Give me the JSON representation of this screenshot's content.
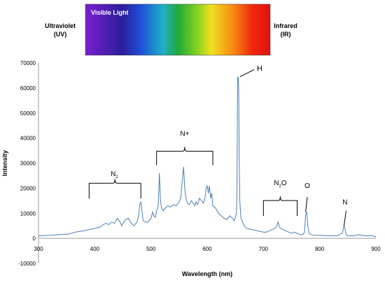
{
  "spectrum_bar": {
    "uv_label_line1": "Ultraviolet",
    "uv_label_line2": "(UV)",
    "visible_label": "Visible Light",
    "ir_label_line1": "Infrared",
    "ir_label_line2": "(IR)"
  },
  "chart_data": {
    "type": "line",
    "title": "",
    "xlabel": "Wavelength (nm)",
    "ylabel": "Intensity",
    "xlim": [
      300,
      900
    ],
    "ylim": [
      -10000,
      70000
    ],
    "x_ticks": [
      300,
      400,
      500,
      600,
      700,
      800,
      900
    ],
    "y_ticks": [
      -10000,
      0,
      10000,
      20000,
      30000,
      40000,
      50000,
      60000,
      70000
    ],
    "grid": false,
    "line_color": "#4a7fb5",
    "series": [
      {
        "x": [
          300,
          320,
          340,
          355,
          365,
          380,
          390,
          400,
          410,
          415,
          420,
          425,
          430,
          435,
          440,
          445,
          448,
          450,
          455,
          460,
          465,
          470,
          475,
          478,
          480,
          482,
          484,
          486,
          490,
          495,
          500,
          503,
          505,
          508,
          510,
          513,
          515,
          517,
          519,
          522,
          525,
          530,
          535,
          540,
          545,
          550,
          553,
          556,
          558,
          560,
          562,
          565,
          568,
          572,
          575,
          578,
          580,
          583,
          586,
          590,
          593,
          596,
          598,
          600,
          602,
          604,
          606,
          608,
          610,
          615,
          620,
          625,
          630,
          635,
          640,
          645,
          648,
          650,
          652,
          653,
          654,
          655,
          656,
          657,
          658,
          660,
          663,
          666,
          670,
          680,
          690,
          700,
          705,
          710,
          715,
          720,
          723,
          726,
          728,
          730,
          735,
          740,
          745,
          750,
          755,
          760,
          765,
          770,
          773,
          775,
          777,
          779,
          781,
          785,
          790,
          800,
          810,
          820,
          830,
          835,
          840,
          843,
          845,
          847,
          850,
          860,
          870,
          880,
          890,
          895,
          900
        ],
        "y": [
          1000,
          1200,
          1500,
          1800,
          2500,
          3000,
          3500,
          4000,
          4500,
          5500,
          6000,
          5500,
          6500,
          6000,
          8000,
          6500,
          5000,
          6000,
          7500,
          8000,
          6000,
          5000,
          6500,
          9000,
          13500,
          14500,
          11000,
          7000,
          6500,
          6500,
          8000,
          10500,
          9000,
          8500,
          11000,
          13000,
          26000,
          15000,
          12000,
          11000,
          12000,
          13000,
          12500,
          13500,
          13000,
          14500,
          16000,
          24000,
          28500,
          20000,
          16000,
          14000,
          13500,
          15000,
          14000,
          13000,
          14500,
          13500,
          16000,
          15000,
          14000,
          16000,
          20000,
          21000,
          18000,
          21000,
          16000,
          18000,
          13000,
          12000,
          10000,
          9000,
          8000,
          7500,
          9000,
          8000,
          7000,
          8500,
          10000,
          20000,
          64000,
          64500,
          60000,
          30000,
          15000,
          8000,
          6500,
          5000,
          4000,
          3500,
          3000,
          2500,
          2500,
          3000,
          3500,
          4000,
          4500,
          6500,
          5000,
          4000,
          3500,
          3000,
          2500,
          2000,
          2500,
          2000,
          1500,
          1500,
          2500,
          9500,
          10500,
          5000,
          2000,
          1500,
          1200,
          1200,
          1100,
          1000,
          1000,
          1500,
          2000,
          4500,
          4000,
          1500,
          1000,
          1000,
          1500,
          1000,
          1000,
          1000,
          600
        ]
      }
    ],
    "annotations": [
      {
        "label": "N",
        "subscript": "2",
        "x": 435,
        "y": 22000
      },
      {
        "label": "N+",
        "x": 560,
        "y": 37000
      },
      {
        "label": "H",
        "x": 660,
        "y": 66000
      },
      {
        "label": "N",
        "subscript": "2",
        "suffix": "O",
        "x": 730,
        "y": 19000
      },
      {
        "label": "O",
        "x": 778,
        "y": 19000
      },
      {
        "label": "N",
        "x": 845,
        "y": 13000
      }
    ]
  }
}
